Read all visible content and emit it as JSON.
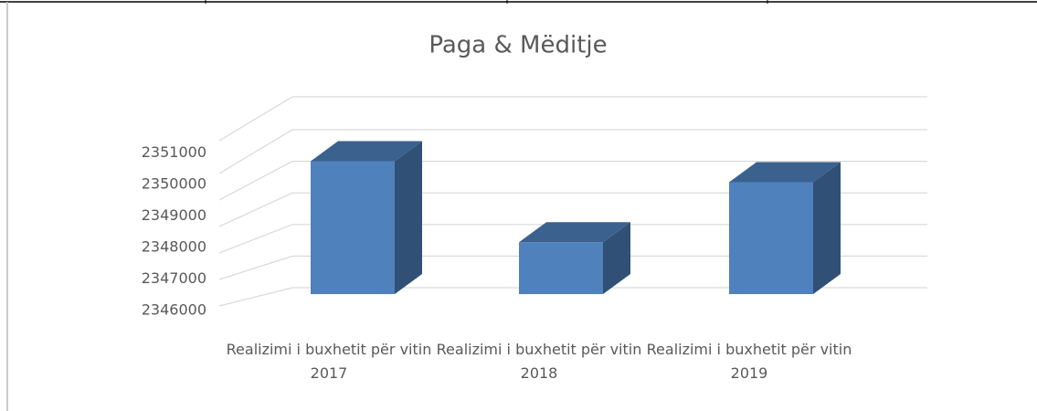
{
  "chart_data": {
    "type": "bar3d",
    "title": "Paga & Mëditje",
    "categories": [
      "Realizimi i buxhetit për vitin 2017",
      "Realizimi i buxhetit për vitin 2018",
      "Realizimi i buxhetit për vitin 2019"
    ],
    "values": [
      2350100,
      2347600,
      2349450
    ],
    "color": "#4f81bd",
    "ylim": [
      2346000,
      2351000
    ],
    "yticks": [
      2346000,
      2347000,
      2348000,
      2349000,
      2350000,
      2351000
    ],
    "grid": true
  }
}
